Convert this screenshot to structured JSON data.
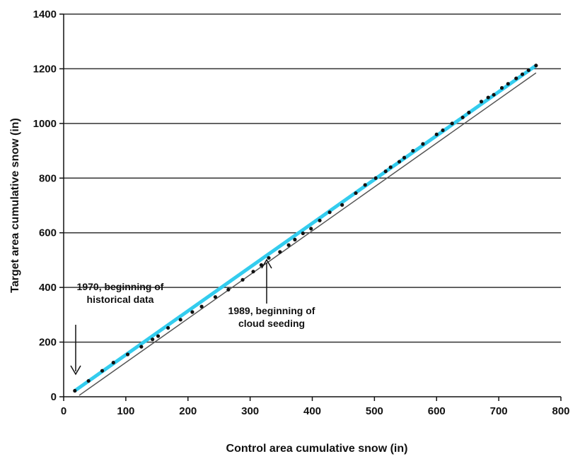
{
  "chart_data": {
    "type": "scatter",
    "xlabel": "Control area cumulative snow (in)",
    "ylabel": "Target area cumulative snow (in)",
    "xlim": [
      0,
      800
    ],
    "ylim": [
      0,
      1400
    ],
    "x_ticks": [
      0,
      100,
      200,
      300,
      400,
      500,
      600,
      700,
      800
    ],
    "y_ticks": [
      0,
      200,
      400,
      600,
      800,
      1000,
      1200,
      1400
    ],
    "grid": "horizontal",
    "colors": {
      "points": "#111111",
      "trend": "#33ccee",
      "reference": "#555555",
      "grid": "#333333"
    },
    "series": [
      {
        "type": "scatter",
        "x": [
          18,
          40,
          62,
          80,
          103,
          125,
          143,
          152,
          168,
          188,
          207,
          222,
          244,
          265,
          288,
          305,
          318,
          330,
          348,
          362,
          372,
          385,
          398,
          412,
          428,
          448,
          470,
          485,
          502,
          518,
          526,
          540,
          548,
          562,
          578,
          600,
          610,
          625,
          642,
          652,
          672,
          683,
          692,
          705,
          715,
          728,
          738,
          748,
          760
        ],
        "y": [
          22,
          58,
          95,
          125,
          155,
          183,
          210,
          222,
          252,
          282,
          310,
          330,
          365,
          392,
          428,
          458,
          482,
          508,
          530,
          555,
          575,
          598,
          615,
          645,
          675,
          702,
          745,
          775,
          800,
          825,
          840,
          860,
          875,
          900,
          925,
          960,
          975,
          1000,
          1022,
          1040,
          1080,
          1095,
          1105,
          1130,
          1145,
          1165,
          1180,
          1195,
          1212
        ]
      },
      {
        "type": "line",
        "x": [
          18,
          760
        ],
        "y": [
          22,
          1212
        ]
      },
      {
        "type": "line",
        "x": [
          25,
          760
        ],
        "y": [
          5,
          1185
        ]
      }
    ],
    "annotations": [
      {
        "lines": [
          "1970, beginning of",
          "historical data"
        ],
        "x": 18,
        "y": 22
      },
      {
        "lines": [
          "1989, beginning of",
          "cloud seeding"
        ],
        "x": 326,
        "y": 500
      }
    ]
  }
}
